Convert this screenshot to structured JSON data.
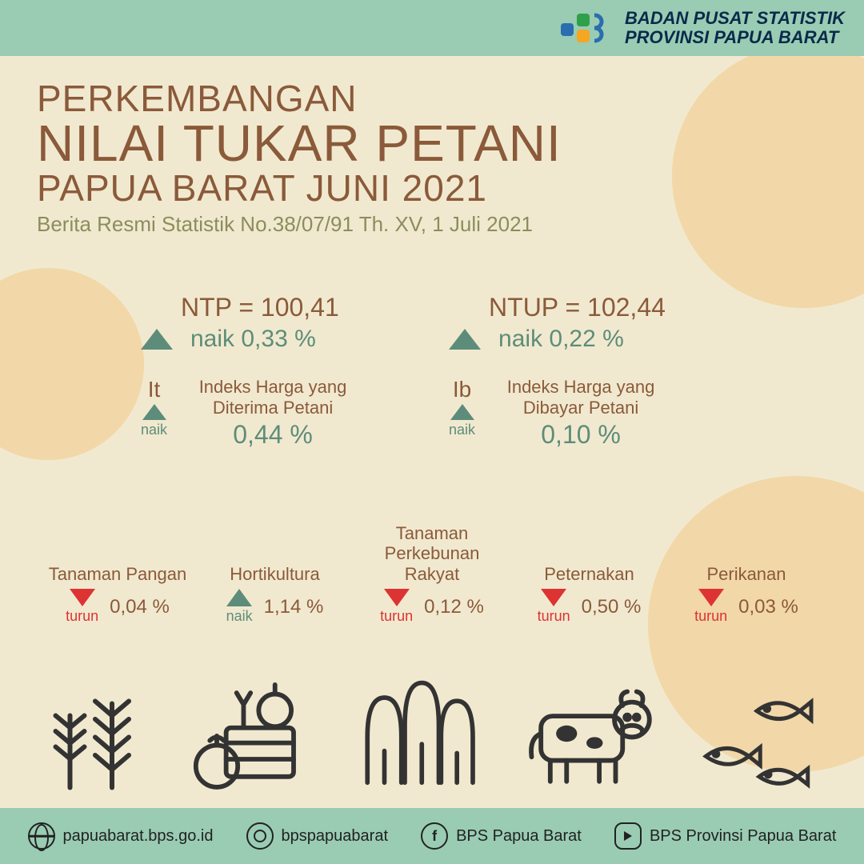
{
  "colors": {
    "background": "#f1e9cf",
    "header_footer": "#99ccb3",
    "circle": "#f2d7a8",
    "brown": "#8a5a3a",
    "olive": "#8b8d5d",
    "teal": "#5d8d7a",
    "red": "#d33"
  },
  "header": {
    "org_line1": "BADAN PUSAT STATISTIK",
    "org_line2": "PROVINSI PAPUA BARAT"
  },
  "title": {
    "line1": "Perkembangan",
    "line2": "Nilai Tukar Petani",
    "line3": "Papua Barat Juni 2021"
  },
  "subtitle": "Berita Resmi Statistik No.38/07/91 Th. XV, 1 Juli 2021",
  "metrics": {
    "ntp": {
      "label": "NTP = 100,41",
      "direction": "up",
      "change_text": "naik 0,33 %"
    },
    "ntup": {
      "label": "NTUP = 102,44",
      "direction": "up",
      "change_text": "naik 0,22 %"
    },
    "it": {
      "code": "It",
      "direction": "up",
      "dir_label": "naik",
      "desc": "Indeks Harga yang Diterima Petani",
      "pct": "0,44 %"
    },
    "ib": {
      "code": "Ib",
      "direction": "up",
      "dir_label": "naik",
      "desc": "Indeks Harga yang Dibayar Petani",
      "pct": "0,10 %"
    }
  },
  "sectors": [
    {
      "name": "Tanaman Pangan",
      "direction": "down",
      "dir_label": "turun",
      "pct": "0,04 %"
    },
    {
      "name": "Hortikultura",
      "direction": "up",
      "dir_label": "naik",
      "pct": "1,14 %"
    },
    {
      "name": "Tanaman Perkebunan Rakyat",
      "direction": "down",
      "dir_label": "turun",
      "pct": "0,12 %"
    },
    {
      "name": "Peternakan",
      "direction": "down",
      "dir_label": "turun",
      "pct": "0,50 %"
    },
    {
      "name": "Perikanan",
      "direction": "down",
      "dir_label": "turun",
      "pct": "0,03 %"
    }
  ],
  "footer": {
    "web": "papuabarat.bps.go.id",
    "instagram": "bpspapuabarat",
    "facebook": "BPS Papua Barat",
    "youtube": "BPS Provinsi Papua Barat"
  }
}
